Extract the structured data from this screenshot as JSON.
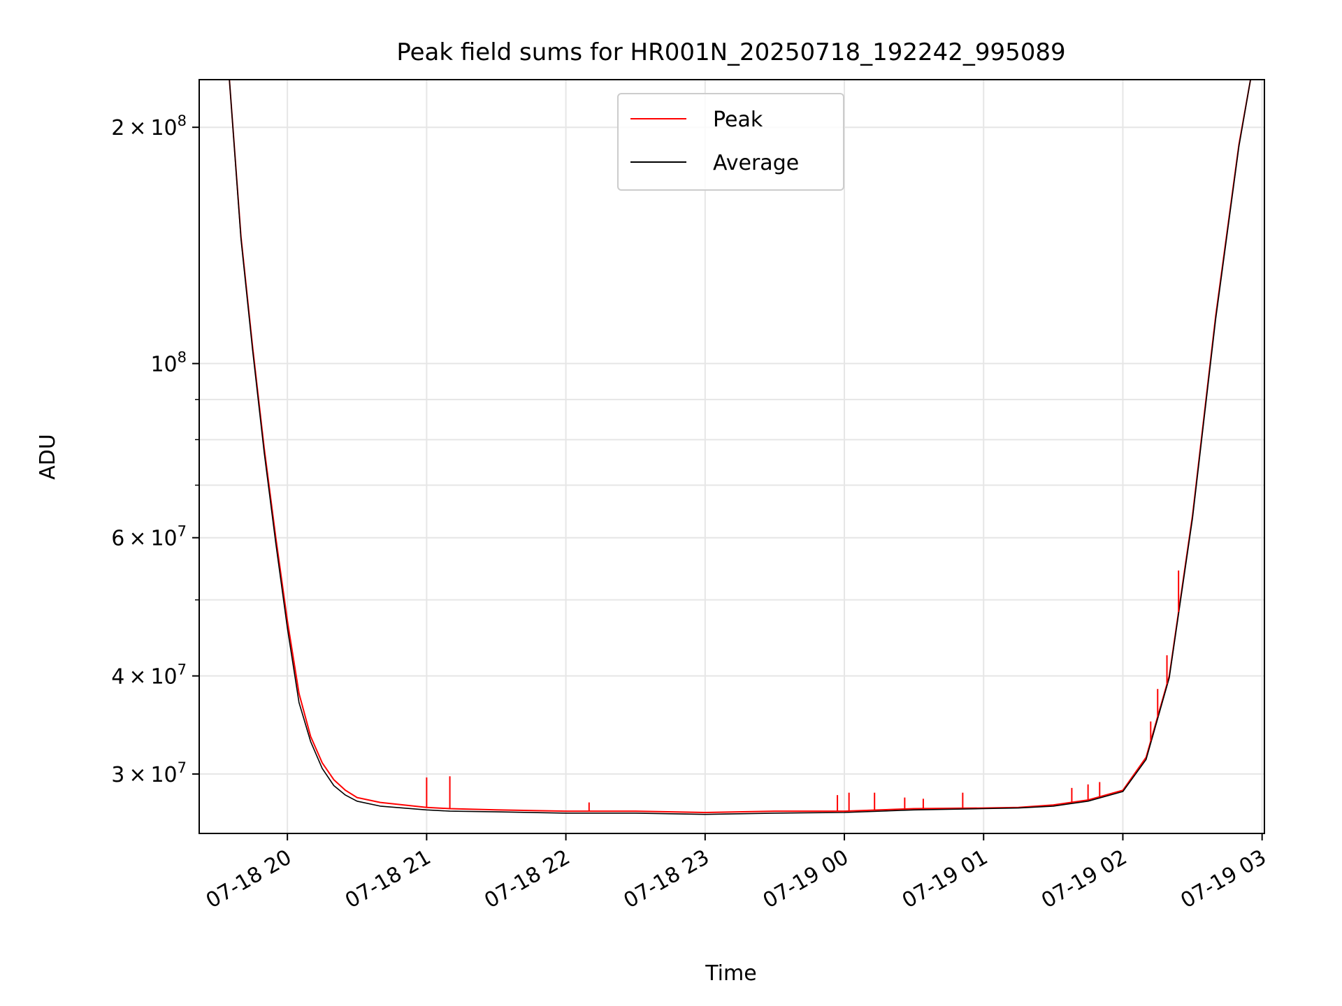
{
  "chart_data": {
    "type": "line",
    "title": "Peak field sums for HR001N_20250718_192242_995089",
    "xlabel": "Time",
    "ylabel": "ADU",
    "yscale": "log",
    "xlim": [
      "2025-07-18 19:22",
      "2025-07-19 03:01"
    ],
    "ylim": [
      25200000,
      230000000
    ],
    "x_ticks": [
      "07-18 20",
      "07-18 21",
      "07-18 22",
      "07-18 23",
      "07-19 00",
      "07-19 01",
      "07-19 02",
      "07-19 03"
    ],
    "y_ticks": [
      {
        "value": 30000000,
        "coef": "3",
        "exp": "7"
      },
      {
        "value": 40000000,
        "coef": "4",
        "exp": "7"
      },
      {
        "value": 60000000,
        "coef": "6",
        "exp": "7"
      },
      {
        "value": 100000000,
        "coef": "",
        "exp": "8"
      },
      {
        "value": 200000000,
        "coef": "2",
        "exp": "8"
      }
    ],
    "y_minor_ticks": [
      50000000,
      70000000,
      80000000,
      90000000
    ],
    "grid": true,
    "legend": {
      "position": "top-center"
    },
    "series": [
      {
        "name": "Peak",
        "color": "#ff0000",
        "x": [
          "2025-07-18 19:22",
          "2025-07-18 19:35",
          "2025-07-18 19:40",
          "2025-07-18 19:45",
          "2025-07-18 19:50",
          "2025-07-18 19:55",
          "2025-07-18 20:00",
          "2025-07-18 20:05",
          "2025-07-18 20:10",
          "2025-07-18 20:15",
          "2025-07-18 20:20",
          "2025-07-18 20:25",
          "2025-07-18 20:30",
          "2025-07-18 20:40",
          "2025-07-18 21:00",
          "2025-07-18 21:10",
          "2025-07-18 21:30",
          "2025-07-18 22:00",
          "2025-07-18 22:30",
          "2025-07-18 23:00",
          "2025-07-18 23:30",
          "2025-07-19 00:00",
          "2025-07-19 00:30",
          "2025-07-19 01:00",
          "2025-07-19 01:15",
          "2025-07-19 01:30",
          "2025-07-19 01:45",
          "2025-07-19 02:00",
          "2025-07-19 02:10",
          "2025-07-19 02:20",
          "2025-07-19 02:30",
          "2025-07-19 02:40",
          "2025-07-19 02:50",
          "2025-07-19 02:55",
          "2025-07-19 03:01"
        ],
        "values": [
          230000000,
          230000000,
          145000000,
          105000000,
          78000000,
          60000000,
          47000000,
          38000000,
          33500000,
          31000000,
          29500000,
          28600000,
          28000000,
          27600000,
          27200000,
          27100000,
          27000000,
          26900000,
          26900000,
          26800000,
          26900000,
          26900000,
          27100000,
          27150000,
          27200000,
          27400000,
          27800000,
          28600000,
          31500000,
          40000000,
          64000000,
          115000000,
          190000000,
          230000000,
          230000000
        ]
      },
      {
        "name": "Average",
        "color": "#000000",
        "x": [
          "2025-07-18 19:22",
          "2025-07-18 19:35",
          "2025-07-18 19:40",
          "2025-07-18 19:45",
          "2025-07-18 19:50",
          "2025-07-18 19:55",
          "2025-07-18 20:00",
          "2025-07-18 20:05",
          "2025-07-18 20:10",
          "2025-07-18 20:15",
          "2025-07-18 20:20",
          "2025-07-18 20:25",
          "2025-07-18 20:30",
          "2025-07-18 20:40",
          "2025-07-18 21:00",
          "2025-07-18 21:10",
          "2025-07-18 21:30",
          "2025-07-18 22:00",
          "2025-07-18 22:30",
          "2025-07-18 23:00",
          "2025-07-18 23:30",
          "2025-07-19 00:00",
          "2025-07-19 00:30",
          "2025-07-19 01:00",
          "2025-07-19 01:15",
          "2025-07-19 01:30",
          "2025-07-19 01:45",
          "2025-07-19 02:00",
          "2025-07-19 02:10",
          "2025-07-19 02:20",
          "2025-07-19 02:30",
          "2025-07-19 02:40",
          "2025-07-19 02:50",
          "2025-07-19 02:55",
          "2025-07-19 03:01"
        ],
        "values": [
          230000000,
          230000000,
          144000000,
          104000000,
          77000000,
          59000000,
          46000000,
          37000000,
          33000000,
          30500000,
          29000000,
          28200000,
          27700000,
          27300000,
          27000000,
          26900000,
          26850000,
          26750000,
          26750000,
          26650000,
          26750000,
          26800000,
          27000000,
          27100000,
          27150000,
          27300000,
          27700000,
          28500000,
          31300000,
          39800000,
          63500000,
          114000000,
          189000000,
          230000000,
          230000000
        ]
      }
    ],
    "spikes": [
      {
        "series": "Peak",
        "x": "2025-07-18 21:00",
        "value": 29700000
      },
      {
        "series": "Peak",
        "x": "2025-07-18 21:10",
        "value": 29800000
      },
      {
        "series": "Peak",
        "x": "2025-07-18 22:10",
        "value": 27600000
      },
      {
        "series": "Peak",
        "x": "2025-07-18 23:57",
        "value": 28200000
      },
      {
        "series": "Peak",
        "x": "2025-07-19 00:02",
        "value": 28400000
      },
      {
        "series": "Peak",
        "x": "2025-07-19 00:13",
        "value": 28400000
      },
      {
        "series": "Peak",
        "x": "2025-07-19 00:26",
        "value": 28000000
      },
      {
        "series": "Peak",
        "x": "2025-07-19 00:34",
        "value": 27900000
      },
      {
        "series": "Peak",
        "x": "2025-07-19 00:51",
        "value": 28400000
      },
      {
        "series": "Peak",
        "x": "2025-07-19 01:38",
        "value": 28800000
      },
      {
        "series": "Peak",
        "x": "2025-07-19 01:45",
        "value": 29100000
      },
      {
        "series": "Peak",
        "x": "2025-07-19 01:50",
        "value": 29300000
      },
      {
        "series": "Peak",
        "x": "2025-07-19 02:12",
        "value": 35000000
      },
      {
        "series": "Peak",
        "x": "2025-07-19 02:15",
        "value": 38500000
      },
      {
        "series": "Peak",
        "x": "2025-07-19 02:19",
        "value": 42500000
      },
      {
        "series": "Peak",
        "x": "2025-07-19 02:24",
        "value": 54500000
      }
    ]
  }
}
